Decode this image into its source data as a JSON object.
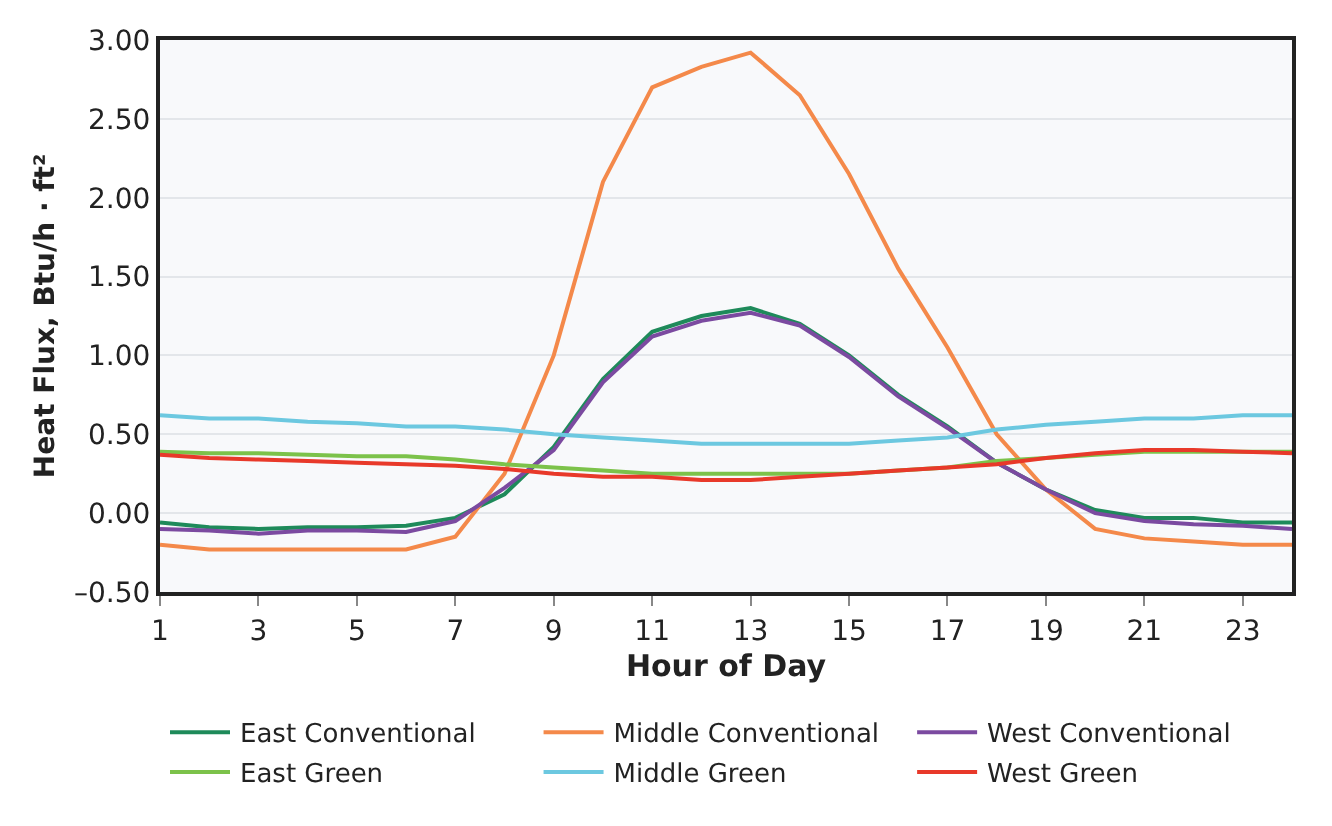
{
  "chart_data": {
    "type": "line",
    "xlabel": "Hour of Day",
    "ylabel": "Heat Flux, Btu/h · ft²",
    "x": [
      1,
      2,
      3,
      4,
      5,
      6,
      7,
      8,
      9,
      10,
      11,
      12,
      13,
      14,
      15,
      16,
      17,
      18,
      19,
      20,
      21,
      22,
      23,
      24
    ],
    "xlim": [
      1,
      24
    ],
    "xticks": [
      1,
      3,
      5,
      7,
      9,
      11,
      13,
      15,
      17,
      19,
      21,
      23
    ],
    "ylim": [
      -0.5,
      3.0
    ],
    "yticks": [
      {
        "value": -0.5,
        "label": "–0.50"
      },
      {
        "value": 0,
        "label": "0.00"
      },
      {
        "value": 0.5,
        "label": "0.50"
      },
      {
        "value": 1,
        "label": "1.00"
      },
      {
        "value": 1.5,
        "label": "1.50"
      },
      {
        "value": 2,
        "label": "2.00"
      },
      {
        "value": 2.5,
        "label": "2.50"
      },
      {
        "value": 3,
        "label": "3.00"
      }
    ],
    "grid": "y",
    "legend": "bottom",
    "marker": "none",
    "line_style": "solid",
    "series": [
      {
        "name": "East Conventional",
        "color": "#1e8a5a",
        "values": [
          -0.06,
          -0.09,
          -0.1,
          -0.09,
          -0.09,
          -0.08,
          -0.03,
          0.12,
          0.42,
          0.85,
          1.15,
          1.25,
          1.3,
          1.2,
          1.0,
          0.75,
          0.55,
          0.32,
          0.15,
          0.02,
          -0.03,
          -0.03,
          -0.06,
          -0.06
        ]
      },
      {
        "name": "Middle Conventional",
        "color": "#f4894a",
        "values": [
          -0.2,
          -0.23,
          -0.23,
          -0.23,
          -0.23,
          -0.23,
          -0.15,
          0.25,
          1.0,
          2.1,
          2.7,
          2.83,
          2.92,
          2.65,
          2.15,
          1.55,
          1.05,
          0.5,
          0.15,
          -0.1,
          -0.16,
          -0.18,
          -0.2,
          -0.2
        ]
      },
      {
        "name": "West Conventional",
        "color": "#7b4aa0",
        "values": [
          -0.1,
          -0.11,
          -0.13,
          -0.11,
          -0.11,
          -0.12,
          -0.05,
          0.16,
          0.4,
          0.83,
          1.12,
          1.22,
          1.27,
          1.19,
          0.99,
          0.74,
          0.54,
          0.32,
          0.15,
          0.0,
          -0.05,
          -0.07,
          -0.08,
          -0.1
        ]
      },
      {
        "name": "East Green",
        "color": "#7cc24a",
        "values": [
          0.39,
          0.38,
          0.38,
          0.37,
          0.36,
          0.36,
          0.34,
          0.31,
          0.29,
          0.27,
          0.25,
          0.25,
          0.25,
          0.25,
          0.25,
          0.27,
          0.29,
          0.33,
          0.35,
          0.37,
          0.39,
          0.39,
          0.39,
          0.39
        ]
      },
      {
        "name": "Middle Green",
        "color": "#6cc8e0",
        "values": [
          0.62,
          0.6,
          0.6,
          0.58,
          0.57,
          0.55,
          0.55,
          0.53,
          0.5,
          0.48,
          0.46,
          0.44,
          0.44,
          0.44,
          0.44,
          0.46,
          0.48,
          0.53,
          0.56,
          0.58,
          0.6,
          0.6,
          0.62,
          0.62
        ]
      },
      {
        "name": "West Green",
        "color": "#e8392a",
        "values": [
          0.37,
          0.35,
          0.34,
          0.33,
          0.32,
          0.31,
          0.3,
          0.28,
          0.25,
          0.23,
          0.23,
          0.21,
          0.21,
          0.23,
          0.25,
          0.27,
          0.29,
          0.31,
          0.35,
          0.38,
          0.4,
          0.4,
          0.39,
          0.38
        ]
      }
    ]
  }
}
